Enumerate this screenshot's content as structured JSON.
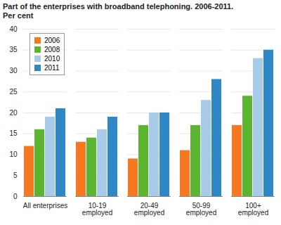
{
  "chart_data": {
    "type": "bar",
    "title": "Part of the enterprises with broadband telephoning. 2006-2011.",
    "subtitle": "Per cent",
    "categories": [
      "All enterprises",
      "10-19 employed",
      "20-49 employed",
      "50-99 employed",
      "100+ employed"
    ],
    "series": [
      {
        "name": "2006",
        "color": "#f47920",
        "values": [
          12,
          13,
          9,
          11,
          17
        ]
      },
      {
        "name": "2008",
        "color": "#5cb531",
        "values": [
          16,
          14,
          17,
          17,
          24
        ]
      },
      {
        "name": "2010",
        "color": "#a8cbea",
        "values": [
          19,
          16,
          20,
          23,
          33
        ]
      },
      {
        "name": "2011",
        "color": "#2f88c6",
        "values": [
          21,
          19,
          20,
          28,
          35
        ]
      }
    ],
    "ylim": [
      0,
      40
    ],
    "yticks": [
      0,
      5,
      10,
      15,
      20,
      25,
      30,
      35,
      40
    ],
    "grid": true,
    "legend": "top-left"
  }
}
